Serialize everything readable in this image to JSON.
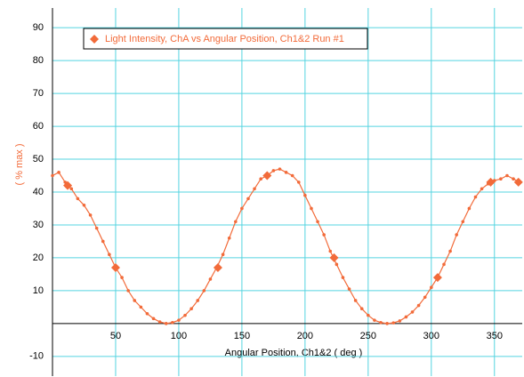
{
  "chart_data": {
    "type": "scatter",
    "legend_label": "Light Intensity, ChA vs Angular Position, Ch1&2 Run #1",
    "xlabel": "Angular Position, Ch1&2 ( deg )",
    "ylabel": "( % max )",
    "xlim": [
      0,
      372
    ],
    "ylim": [
      -16,
      96
    ],
    "xticks": [
      50,
      100,
      150,
      200,
      250,
      300,
      350
    ],
    "yticks": [
      -10,
      10,
      20,
      30,
      40,
      50,
      60,
      70,
      80,
      90
    ],
    "grid": true,
    "grid_color": "#55d4e0",
    "color": "#f26b3a",
    "series": [
      {
        "name": "Light Intensity, ChA vs Angular Position, Ch1&2 Run #1",
        "color": "#f26b3a",
        "x": [
          0,
          5,
          10,
          15,
          20,
          25,
          30,
          35,
          40,
          45,
          50,
          55,
          60,
          65,
          70,
          75,
          80,
          85,
          90,
          95,
          100,
          105,
          110,
          115,
          120,
          125,
          130,
          135,
          140,
          145,
          150,
          155,
          160,
          165,
          170,
          175,
          180,
          185,
          190,
          195,
          200,
          205,
          210,
          215,
          220,
          225,
          230,
          235,
          240,
          245,
          250,
          255,
          260,
          265,
          270,
          275,
          280,
          285,
          290,
          295,
          300,
          305,
          310,
          315,
          320,
          325,
          330,
          335,
          340,
          345,
          350,
          355,
          360,
          365,
          370
        ],
        "values": [
          45,
          46,
          43,
          41,
          38,
          36,
          33,
          29,
          25,
          21,
          17,
          14,
          10,
          7,
          5,
          3,
          1.5,
          0.5,
          0,
          0.3,
          1,
          2.5,
          4.5,
          7,
          10,
          13.5,
          17,
          21,
          26,
          31,
          35,
          38,
          41,
          44,
          45,
          46.5,
          47,
          46,
          45,
          43,
          39,
          35,
          31,
          27,
          22,
          18,
          14,
          10.5,
          7,
          4.5,
          2.5,
          1,
          0.3,
          0,
          0.2,
          0.8,
          2,
          3.5,
          5.5,
          8,
          11,
          14,
          18,
          22,
          27,
          31,
          35,
          38.5,
          41,
          42.5,
          43.5,
          44,
          45,
          44,
          43
        ]
      }
    ],
    "markers": {
      "x": [
        12,
        50,
        131,
        170,
        223,
        305,
        347,
        369
      ],
      "values": [
        42,
        17,
        17,
        45,
        20,
        14,
        43,
        43
      ]
    }
  }
}
